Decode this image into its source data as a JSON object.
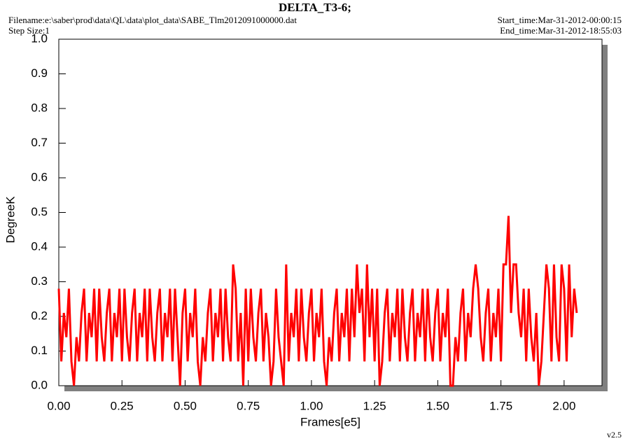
{
  "chart_data": {
    "type": "line",
    "title": "DELTA_T3-6;",
    "filename": "Filename:e:\\saber\\prod\\data\\QL\\data\\plot_data\\SABE_Tlm2012091000000.dat",
    "step_size": "Step Size:1",
    "start_time": "Start_time:Mar-31-2012-00:00:15",
    "end_time": "End_time:Mar-31-2012-18:55:03",
    "xlabel": "Frames[e5]",
    "ylabel": "DegreeK",
    "version": "v2.5",
    "xlim": [
      0,
      2.15
    ],
    "ylim": [
      0,
      1.0
    ],
    "xticks": [
      {
        "value": 0,
        "label": "0.00"
      },
      {
        "value": 0.25,
        "label": "0.25"
      },
      {
        "value": 0.5,
        "label": "0.50"
      },
      {
        "value": 0.75,
        "label": "0.75"
      },
      {
        "value": 1,
        "label": "1.00"
      },
      {
        "value": 1.25,
        "label": "1.25"
      },
      {
        "value": 1.5,
        "label": "1.50"
      },
      {
        "value": 1.75,
        "label": "1.75"
      },
      {
        "value": 2,
        "label": "2.00"
      }
    ],
    "yticks": [
      {
        "value": 0,
        "label": "0.0"
      },
      0.1,
      0.2,
      0.3,
      0.4,
      0.5,
      0.6,
      0.7,
      0.8,
      0.9,
      {
        "value": 1,
        "label": "1.0"
      }
    ],
    "x": [
      0,
      0.01,
      0.02,
      0.03,
      0.04,
      0.05,
      0.06,
      0.07,
      0.08,
      0.09,
      0.1,
      0.11,
      0.12,
      0.13,
      0.14,
      0.15,
      0.16,
      0.17,
      0.18,
      0.19,
      0.2,
      0.21,
      0.22,
      0.23,
      0.24,
      0.25,
      0.26,
      0.27,
      0.28,
      0.29,
      0.3,
      0.31,
      0.32,
      0.33,
      0.34,
      0.35,
      0.36,
      0.37,
      0.38,
      0.39,
      0.4,
      0.41,
      0.42,
      0.43,
      0.44,
      0.45,
      0.46,
      0.47,
      0.48,
      0.49,
      0.5,
      0.51,
      0.52,
      0.53,
      0.54,
      0.55,
      0.56,
      0.57,
      0.58,
      0.59,
      0.6,
      0.61,
      0.62,
      0.63,
      0.64,
      0.65,
      0.66,
      0.67,
      0.68,
      0.69,
      0.7,
      0.71,
      0.72,
      0.73,
      0.74,
      0.75,
      0.76,
      0.77,
      0.78,
      0.79,
      0.8,
      0.81,
      0.82,
      0.83,
      0.84,
      0.85,
      0.86,
      0.87,
      0.88,
      0.89,
      0.9,
      0.91,
      0.92,
      0.93,
      0.94,
      0.95,
      0.96,
      0.97,
      0.98,
      0.99,
      1,
      1.01,
      1.02,
      1.03,
      1.04,
      1.05,
      1.06,
      1.07,
      1.08,
      1.09,
      1.1,
      1.11,
      1.12,
      1.13,
      1.14,
      1.15,
      1.16,
      1.17,
      1.18,
      1.19,
      1.2,
      1.21,
      1.22,
      1.23,
      1.24,
      1.25,
      1.26,
      1.27,
      1.28,
      1.29,
      1.3,
      1.31,
      1.32,
      1.33,
      1.34,
      1.35,
      1.36,
      1.37,
      1.38,
      1.39,
      1.4,
      1.41,
      1.42,
      1.43,
      1.44,
      1.45,
      1.46,
      1.47,
      1.48,
      1.49,
      1.5,
      1.51,
      1.52,
      1.53,
      1.54,
      1.55,
      1.56,
      1.57,
      1.58,
      1.59,
      1.6,
      1.61,
      1.62,
      1.63,
      1.64,
      1.65,
      1.66,
      1.67,
      1.68,
      1.69,
      1.7,
      1.71,
      1.72,
      1.73,
      1.74,
      1.75,
      1.76,
      1.77,
      1.78,
      1.79,
      1.8,
      1.81,
      1.82,
      1.83,
      1.84,
      1.85,
      1.86,
      1.87,
      1.88,
      1.89,
      1.9,
      1.91,
      1.92,
      1.93,
      1.94,
      1.95,
      1.96,
      1.97,
      1.98,
      1.99,
      2,
      2.01,
      2.02,
      2.03,
      2.04,
      2.05
    ],
    "series": [
      {
        "color": "#ff0000",
        "values": [
          0.28,
          0.07,
          0.21,
          0.14,
          0.28,
          0.07,
          0,
          0.14,
          0.07,
          0.21,
          0.28,
          0.07,
          0.21,
          0.14,
          0.28,
          0.07,
          0.28,
          0.14,
          0.07,
          0.21,
          0.28,
          0.07,
          0.21,
          0.14,
          0.28,
          0.07,
          0.28,
          0.14,
          0.07,
          0.21,
          0.28,
          0.07,
          0.21,
          0.14,
          0.28,
          0.07,
          0.28,
          0.14,
          0.07,
          0.21,
          0.28,
          0.07,
          0.21,
          0.14,
          0.28,
          0.07,
          0.28,
          0.14,
          0,
          0.21,
          0.28,
          0.07,
          0.21,
          0.14,
          0.28,
          0.07,
          0,
          0.14,
          0.07,
          0.21,
          0.28,
          0.07,
          0.21,
          0.14,
          0.28,
          0.07,
          0.28,
          0.14,
          0.07,
          0.35,
          0.28,
          0.07,
          0.21,
          0,
          0.28,
          0.07,
          0.28,
          0.14,
          0.07,
          0.21,
          0.28,
          0.07,
          0.21,
          0.14,
          0,
          0.07,
          0.28,
          0.14,
          0.07,
          0,
          0.35,
          0.07,
          0.21,
          0.14,
          0.28,
          0.07,
          0.28,
          0.14,
          0.07,
          0.21,
          0.28,
          0.07,
          0.21,
          0.14,
          0.28,
          0.07,
          0,
          0.14,
          0.07,
          0.21,
          0.28,
          0.07,
          0.21,
          0.14,
          0.28,
          0.07,
          0.28,
          0.14,
          0.35,
          0.21,
          0.28,
          0.07,
          0.35,
          0.14,
          0.28,
          0.07,
          0.28,
          0,
          0.07,
          0.21,
          0.28,
          0.07,
          0.21,
          0.14,
          0.28,
          0.07,
          0.28,
          0.14,
          0.07,
          0.21,
          0.28,
          0.07,
          0.21,
          0.14,
          0.28,
          0.07,
          0.28,
          0.14,
          0.07,
          0.21,
          0.28,
          0.07,
          0.21,
          0.14,
          0.28,
          0,
          0,
          0.14,
          0.07,
          0.21,
          0.28,
          0.07,
          0.21,
          0.14,
          0.28,
          0.35,
          0.28,
          0.14,
          0.07,
          0.21,
          0.28,
          0.07,
          0.21,
          0.14,
          0.28,
          0.07,
          0.35,
          0.35,
          0.49,
          0.21,
          0.35,
          0.35,
          0.21,
          0.14,
          0.28,
          0.07,
          0.28,
          0.14,
          0.07,
          0.21,
          0,
          0.07,
          0.21,
          0.35,
          0.28,
          0.07,
          0.35,
          0.14,
          0.07,
          0.35,
          0.28,
          0.07,
          0.35,
          0.14,
          0.28,
          0.21
        ]
      }
    ]
  }
}
